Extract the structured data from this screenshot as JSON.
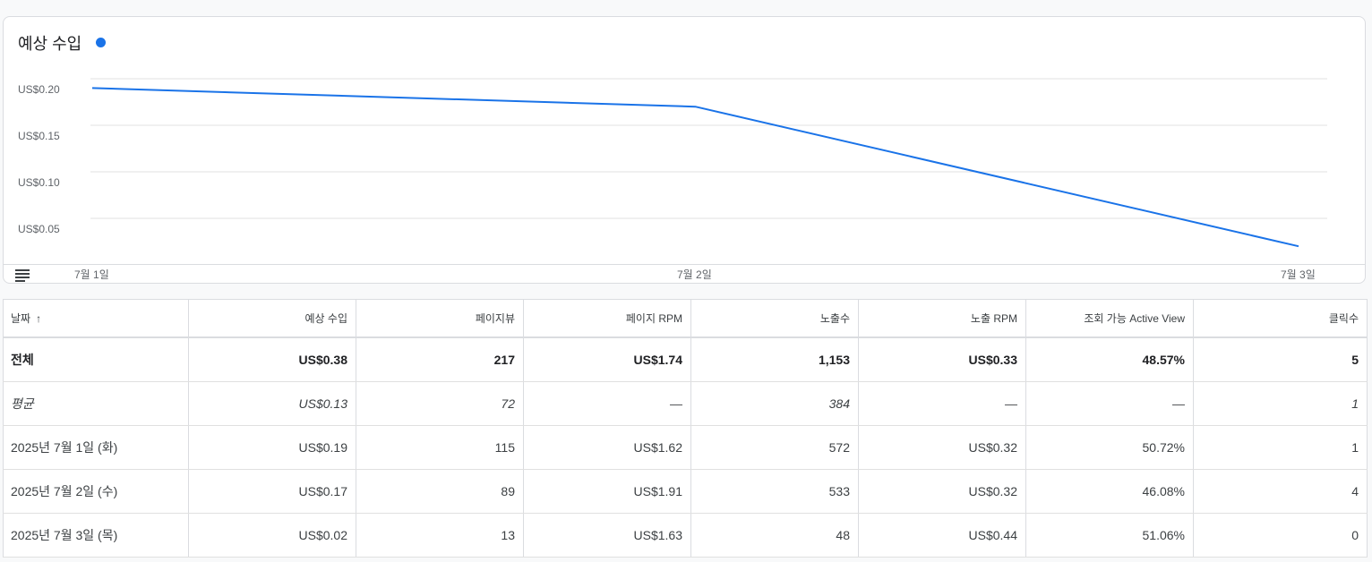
{
  "card": {
    "title": "예상 수입",
    "legend_color": "#1a73e8",
    "menu_icon": "menu-lines-icon"
  },
  "chart_data": {
    "type": "line",
    "x": [
      "7월 1일",
      "7월 2일",
      "7월 3일"
    ],
    "series": [
      {
        "values": [
          0.19,
          0.17,
          0.02
        ],
        "color": "#1a73e8"
      }
    ],
    "yticks": [
      "US$0.20",
      "US$0.15",
      "US$0.10",
      "US$0.05"
    ],
    "ylim": [
      0,
      0.2
    ],
    "grid": true
  },
  "table": {
    "headers": {
      "date": "날짜",
      "sort_icon": "↑",
      "revenue": "예상 수입",
      "pageviews": "페이지뷰",
      "page_rpm": "페이지 RPM",
      "impressions": "노출수",
      "impression_rpm": "노출 RPM",
      "active_view": "조회 가능 Active View",
      "clicks": "클릭수"
    },
    "total": {
      "date": "전체",
      "revenue": "US$0.38",
      "pageviews": "217",
      "page_rpm": "US$1.74",
      "impressions": "1,153",
      "impression_rpm": "US$0.33",
      "active_view": "48.57%",
      "clicks": "5"
    },
    "average": {
      "date": "평균",
      "revenue": "US$0.13",
      "pageviews": "72",
      "page_rpm": "—",
      "impressions": "384",
      "impression_rpm": "—",
      "active_view": "—",
      "clicks": "1"
    },
    "rows": [
      {
        "date": "2025년 7월 1일 (화)",
        "revenue": "US$0.19",
        "pageviews": "115",
        "page_rpm": "US$1.62",
        "impressions": "572",
        "impression_rpm": "US$0.32",
        "active_view": "50.72%",
        "clicks": "1"
      },
      {
        "date": "2025년 7월 2일 (수)",
        "revenue": "US$0.17",
        "pageviews": "89",
        "page_rpm": "US$1.91",
        "impressions": "533",
        "impression_rpm": "US$0.32",
        "active_view": "46.08%",
        "clicks": "4"
      },
      {
        "date": "2025년 7월 3일 (목)",
        "revenue": "US$0.02",
        "pageviews": "13",
        "page_rpm": "US$1.63",
        "impressions": "48",
        "impression_rpm": "US$0.44",
        "active_view": "51.06%",
        "clicks": "0"
      }
    ]
  }
}
